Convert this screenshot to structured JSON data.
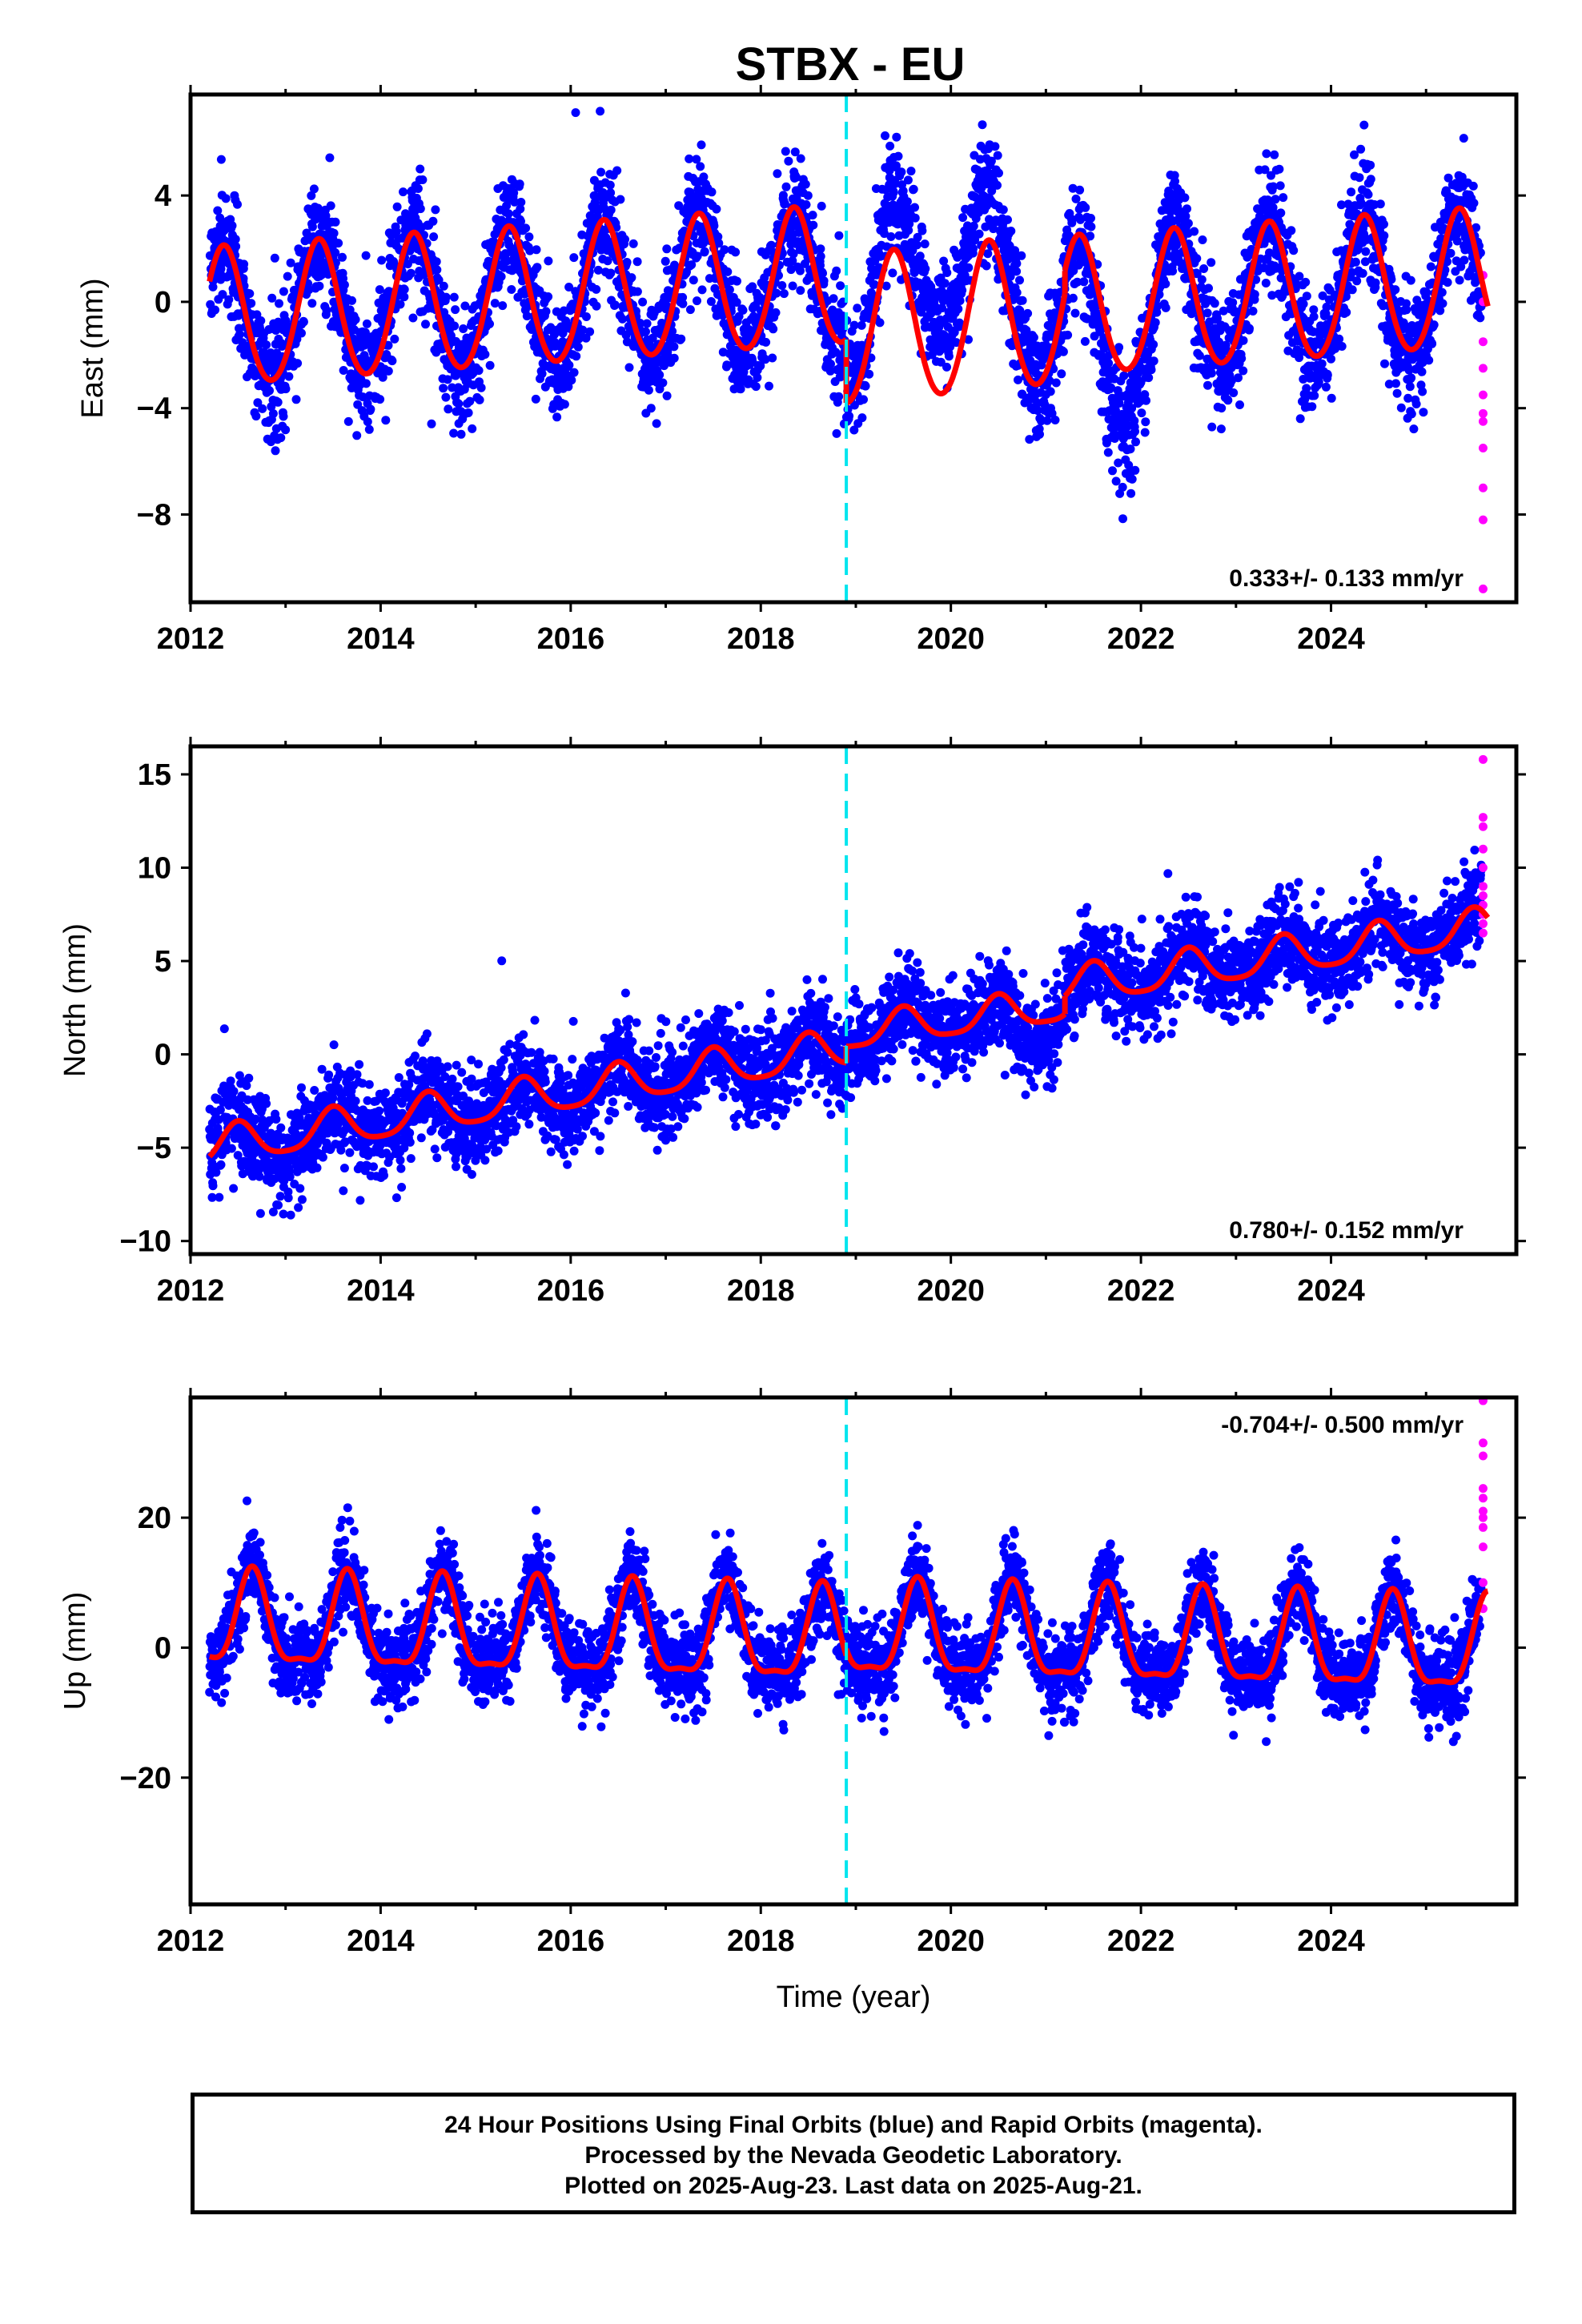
{
  "figure": {
    "title": "STBX - EU",
    "caption": [
      "24 Hour Positions Using Final Orbits (blue) and Rapid Orbits (magenta).",
      "Processed by the Nevada Geodetic Laboratory.",
      "Plotted on 2025-Aug-23. Last data on 2025-Aug-21."
    ],
    "colors": {
      "final": "#0000ff",
      "rapid": "#ff00ff",
      "model": "#ff0000",
      "offset": "#00e5ee"
    }
  },
  "chart_data": [
    {
      "type": "scatter",
      "ylabel": "East (mm)",
      "xlabel": "",
      "xlim": [
        2012.0,
        2025.95
      ],
      "ylim": [
        -11.3,
        7.8
      ],
      "xticks": [
        2012,
        2014,
        2016,
        2018,
        2020,
        2022,
        2024
      ],
      "xtick_labels": [
        "2012",
        "2014",
        "2016",
        "2018",
        "2020",
        "2022",
        "2024"
      ],
      "yticks": [
        -8,
        -4,
        0,
        4
      ],
      "ytick_labels": [
        "−8",
        "−4",
        "0",
        "4"
      ],
      "rate_label": "0.333+/- 0.133 mm/yr",
      "equipment_change": 2018.9,
      "model": {
        "segments": [
          {
            "start": 2012.2,
            "end": 2018.9,
            "offset_start": -0.7,
            "offset_end": 0.9,
            "annual_amplitude": 2.6,
            "annual_peak": 2012.35,
            "semiannual_amplitude": 0.2
          },
          {
            "start": 2018.9,
            "end": 2021.2,
            "offset_start": -1.2,
            "offset_end": -0.4,
            "annual_amplitude": 2.8,
            "annual_peak": 2012.4,
            "semiannual_amplitude": 0.2
          },
          {
            "start": 2021.2,
            "end": 2025.65,
            "offset_start": -0.3,
            "offset_end": 0.8,
            "annual_amplitude": 2.6,
            "annual_peak": 2012.35,
            "semiannual_amplitude": 0.2
          }
        ]
      },
      "series": [
        {
          "color": "#0000ff",
          "scatter_sd": 1.1,
          "start": 2012.2,
          "end": 2025.58,
          "anomalies": [
            {
              "start": 2018.9,
              "end": 2020.9,
              "offset": 2.6
            },
            {
              "start": 2021.4,
              "end": 2022.2,
              "offset": -2.2
            }
          ]
        },
        {
          "color": "#ff00ff",
          "x": 2025.6,
          "values": [
            1.0,
            0.0,
            -1.5,
            -2.5,
            -3.5,
            -4.2,
            -4.5,
            -5.5,
            -7.0,
            -8.2,
            -10.8
          ]
        }
      ]
    },
    {
      "type": "scatter",
      "ylabel": "North (mm)",
      "xlabel": "",
      "xlim": [
        2012.0,
        2025.95
      ],
      "ylim": [
        -10.7,
        16.5
      ],
      "xticks": [
        2012,
        2014,
        2016,
        2018,
        2020,
        2022,
        2024
      ],
      "xtick_labels": [
        "2012",
        "2014",
        "2016",
        "2018",
        "2020",
        "2022",
        "2024"
      ],
      "yticks": [
        -10,
        -5,
        0,
        5,
        10,
        15
      ],
      "ytick_labels": [
        "−10",
        "−5",
        "0",
        "5",
        "10",
        "15"
      ],
      "rate_label": "0.780+/- 0.152 mm/yr",
      "equipment_change": 2018.9,
      "model": {
        "segments": [
          {
            "start": 2012.2,
            "end": 2018.9,
            "offset_start": -5.0,
            "offset_end": 0.3,
            "annual_amplitude": 1.0,
            "annual_peak": 2012.5,
            "semiannual_amplitude": 0.2
          },
          {
            "start": 2018.9,
            "end": 2021.2,
            "offset_start": 1.1,
            "offset_end": 2.6,
            "annual_amplitude": 0.9,
            "annual_peak": 2012.5,
            "semiannual_amplitude": 0.2
          },
          {
            "start": 2021.2,
            "end": 2025.65,
            "offset_start": 3.6,
            "offset_end": 6.8,
            "annual_amplitude": 1.0,
            "annual_peak": 2012.5,
            "semiannual_amplitude": 0.2
          }
        ]
      },
      "series": [
        {
          "color": "#0000ff",
          "scatter_sd": 1.2,
          "start": 2012.2,
          "end": 2025.58,
          "anomalies": [
            {
              "start": 2020.5,
              "end": 2021.2,
              "offset": -1.2
            }
          ]
        },
        {
          "color": "#ff00ff",
          "x": 2025.6,
          "values": [
            15.8,
            12.7,
            12.2,
            11.0,
            10.0,
            9.0,
            8.5,
            8.0,
            7.5,
            7.0,
            6.5
          ]
        }
      ]
    },
    {
      "type": "scatter",
      "ylabel": "Up (mm)",
      "xlabel": "Time (year)",
      "xlim": [
        2012.0,
        2025.95
      ],
      "ylim": [
        -39.5,
        38.5
      ],
      "xticks": [
        2012,
        2014,
        2016,
        2018,
        2020,
        2022,
        2024
      ],
      "xtick_labels": [
        "2012",
        "2014",
        "2016",
        "2018",
        "2020",
        "2022",
        "2024"
      ],
      "yticks": [
        -20,
        0,
        20
      ],
      "ytick_labels": [
        "−20",
        "0",
        "20"
      ],
      "rate_label": "-0.704+/- 0.500 mm/yr",
      "equipment_change": 2018.9,
      "model": {
        "segments": [
          {
            "start": 2012.2,
            "end": 2018.9,
            "offset_start": 3.5,
            "offset_end": 1.0,
            "annual_amplitude": 7.0,
            "annual_peak": 2012.65,
            "semiannual_amplitude": 2.2
          },
          {
            "start": 2018.9,
            "end": 2025.65,
            "offset_start": 2.0,
            "offset_end": -0.5,
            "annual_amplitude": 7.0,
            "annual_peak": 2012.65,
            "semiannual_amplitude": 2.2
          }
        ]
      },
      "series": [
        {
          "color": "#0000ff",
          "scatter_sd": 3.2,
          "start": 2012.2,
          "end": 2025.58,
          "anomalies": []
        },
        {
          "color": "#ff00ff",
          "x": 2025.6,
          "values": [
            38.0,
            31.5,
            29.5,
            24.5,
            23.0,
            21.0,
            20.0,
            18.5,
            15.5,
            10.0,
            6.0
          ]
        }
      ]
    }
  ]
}
